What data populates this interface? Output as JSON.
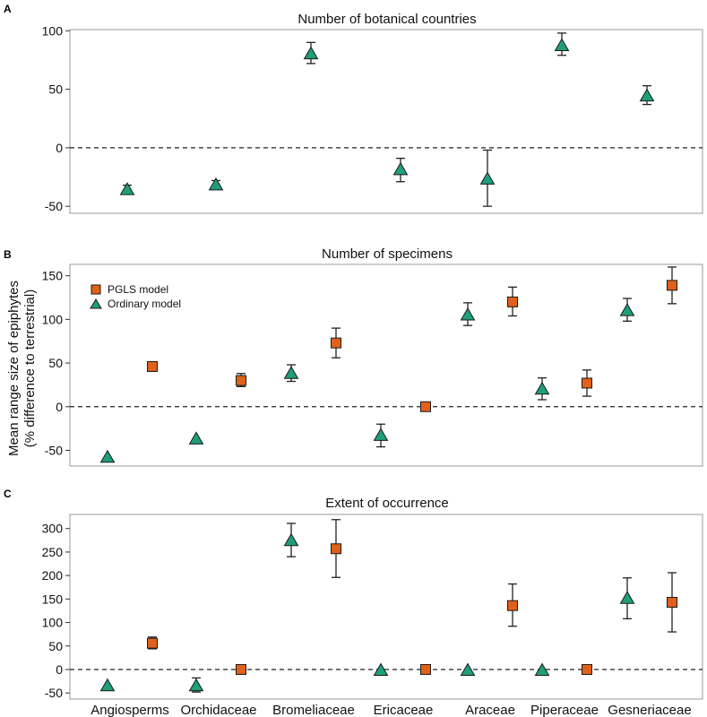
{
  "ylabel_line1": "Mean range size of epiphytes",
  "ylabel_line2": "(% difference to terrestrial)",
  "colors": {
    "pgls": "#e0611a",
    "ordinary": "#1f9e7a",
    "edge": "#1a1a1a"
  },
  "legend": {
    "pgls": "PGLS model",
    "ordinary": "Ordinary model"
  },
  "chart_data": [
    {
      "type": "scatter",
      "panel": "A",
      "title": "Number of botanical countries",
      "categories": [
        "Angiosperms",
        "Orchidaceae",
        "Bromeliaceae",
        "Ericaceae",
        "Araceae",
        "Piperaceae",
        "Gesneriaceae"
      ],
      "ylim": [
        -56,
        101
      ],
      "yticks": [
        -50,
        0,
        50,
        100
      ],
      "reference_line": 0,
      "series": [
        {
          "name": "Ordinary model",
          "values": [
            -35,
            -31,
            81,
            -18,
            -26,
            88,
            45
          ],
          "lower": [
            -37,
            -34,
            72,
            -29,
            -50,
            79,
            37
          ],
          "upper": [
            -32,
            -28,
            90,
            -9,
            -2,
            98,
            53
          ]
        }
      ]
    },
    {
      "type": "scatter",
      "panel": "B",
      "title": "Number of specimens",
      "categories": [
        "Angiosperms",
        "Orchidaceae",
        "Bromeliaceae",
        "Ericaceae",
        "Araceae",
        "Piperaceae",
        "Gesneriaceae"
      ],
      "ylim": [
        -68,
        163
      ],
      "yticks": [
        -50,
        0,
        50,
        100,
        150
      ],
      "reference_line": 0,
      "series": [
        {
          "name": "Ordinary model",
          "values": [
            -57,
            -36,
            39,
            -32,
            106,
            21,
            111
          ],
          "lower": [
            null,
            null,
            29,
            -46,
            93,
            8,
            98
          ],
          "upper": [
            null,
            null,
            48,
            -20,
            119,
            33,
            124
          ]
        },
        {
          "name": "PGLS model",
          "values": [
            46,
            30,
            73,
            0,
            120,
            27,
            139
          ],
          "lower": [
            null,
            23,
            56,
            null,
            104,
            12,
            118
          ],
          "upper": [
            null,
            38,
            90,
            null,
            137,
            42,
            160
          ]
        }
      ]
    },
    {
      "type": "scatter",
      "panel": "C",
      "title": "Extent of occurrence",
      "categories": [
        "Angiosperms",
        "Orchidaceae",
        "Bromeliaceae",
        "Ericaceae",
        "Araceae",
        "Piperaceae",
        "Gesneriaceae"
      ],
      "ylim": [
        -63,
        330
      ],
      "yticks": [
        -50,
        0,
        50,
        100,
        150,
        200,
        250,
        300
      ],
      "reference_line": 0,
      "series": [
        {
          "name": "Ordinary model",
          "values": [
            -33,
            -33,
            276,
            0,
            0,
            0,
            153
          ],
          "lower": [
            null,
            -48,
            240,
            null,
            null,
            null,
            108
          ],
          "upper": [
            null,
            -18,
            311,
            null,
            null,
            null,
            195
          ]
        },
        {
          "name": "PGLS model",
          "values": [
            56,
            0,
            257,
            0,
            136,
            0,
            143
          ],
          "lower": [
            44,
            null,
            196,
            null,
            92,
            null,
            80
          ],
          "upper": [
            69,
            null,
            319,
            null,
            182,
            null,
            206
          ]
        }
      ]
    }
  ]
}
